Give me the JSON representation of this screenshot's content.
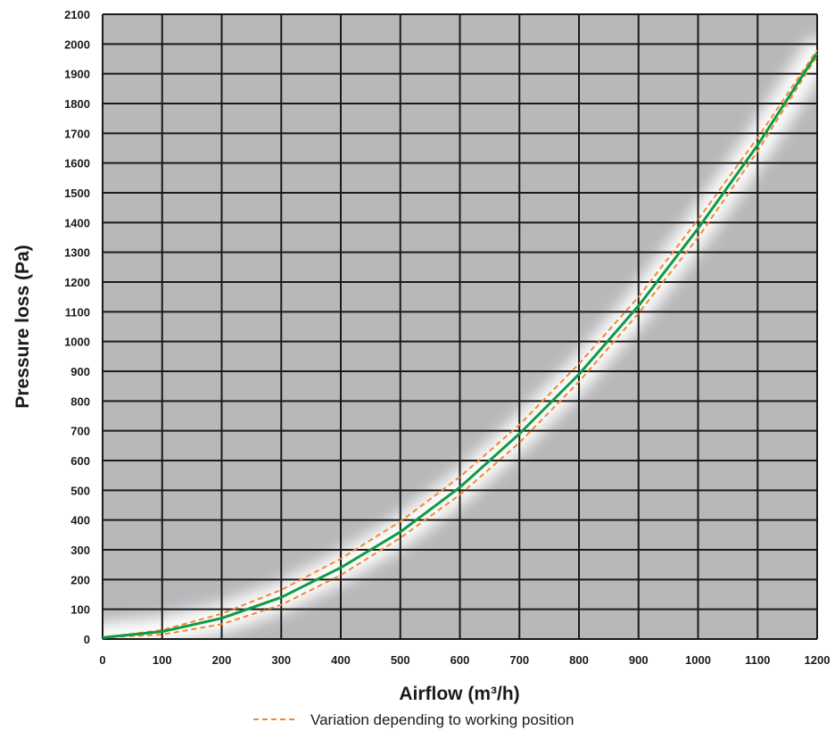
{
  "chart_data": {
    "type": "line",
    "xlabel": "Airflow (m³/h)",
    "ylabel": "Pressure loss (Pa)",
    "xlim": [
      0,
      1200
    ],
    "ylim": [
      0,
      2100
    ],
    "x_ticks": [
      "0",
      "100",
      "200",
      "300",
      "400",
      "500",
      "600",
      "700",
      "800",
      "900",
      "1000",
      "1100",
      "1200"
    ],
    "y_ticks": [
      "0",
      "100",
      "200",
      "300",
      "400",
      "500",
      "600",
      "700",
      "800",
      "900",
      "1000",
      "1100",
      "1200",
      "1300",
      "1400",
      "1500",
      "1600",
      "1700",
      "1800",
      "1900",
      "2000",
      "2100"
    ],
    "grid": true,
    "background_color": "#b8b8bb",
    "series": [
      {
        "style": "solid",
        "color": "#0f9a48",
        "x": [
          0,
          100,
          200,
          300,
          400,
          500,
          600,
          700,
          800,
          900,
          1000,
          1100,
          1200
        ],
        "y": [
          5,
          25,
          70,
          140,
          240,
          360,
          510,
          690,
          890,
          1120,
          1380,
          1660,
          1970
        ]
      },
      {
        "name": "Variation depending to working position",
        "style": "dashed",
        "color": "#f28a30",
        "x": [
          0,
          100,
          200,
          300,
          400,
          500,
          600,
          700,
          800,
          900,
          1000,
          1100,
          1200
        ],
        "y": [
          5,
          30,
          85,
          165,
          270,
          395,
          545,
          720,
          925,
          1150,
          1410,
          1685,
          1980
        ]
      },
      {
        "name": "Variation depending to working position",
        "style": "dashed",
        "color": "#f28a30",
        "x": [
          0,
          100,
          200,
          300,
          400,
          500,
          600,
          700,
          800,
          900,
          1000,
          1100,
          1200
        ],
        "y": [
          5,
          15,
          50,
          115,
          215,
          340,
          485,
          660,
          865,
          1095,
          1350,
          1640,
          1960
        ]
      }
    ],
    "legend": {
      "position": "bottom-center",
      "label": "Variation depending to working position"
    }
  }
}
